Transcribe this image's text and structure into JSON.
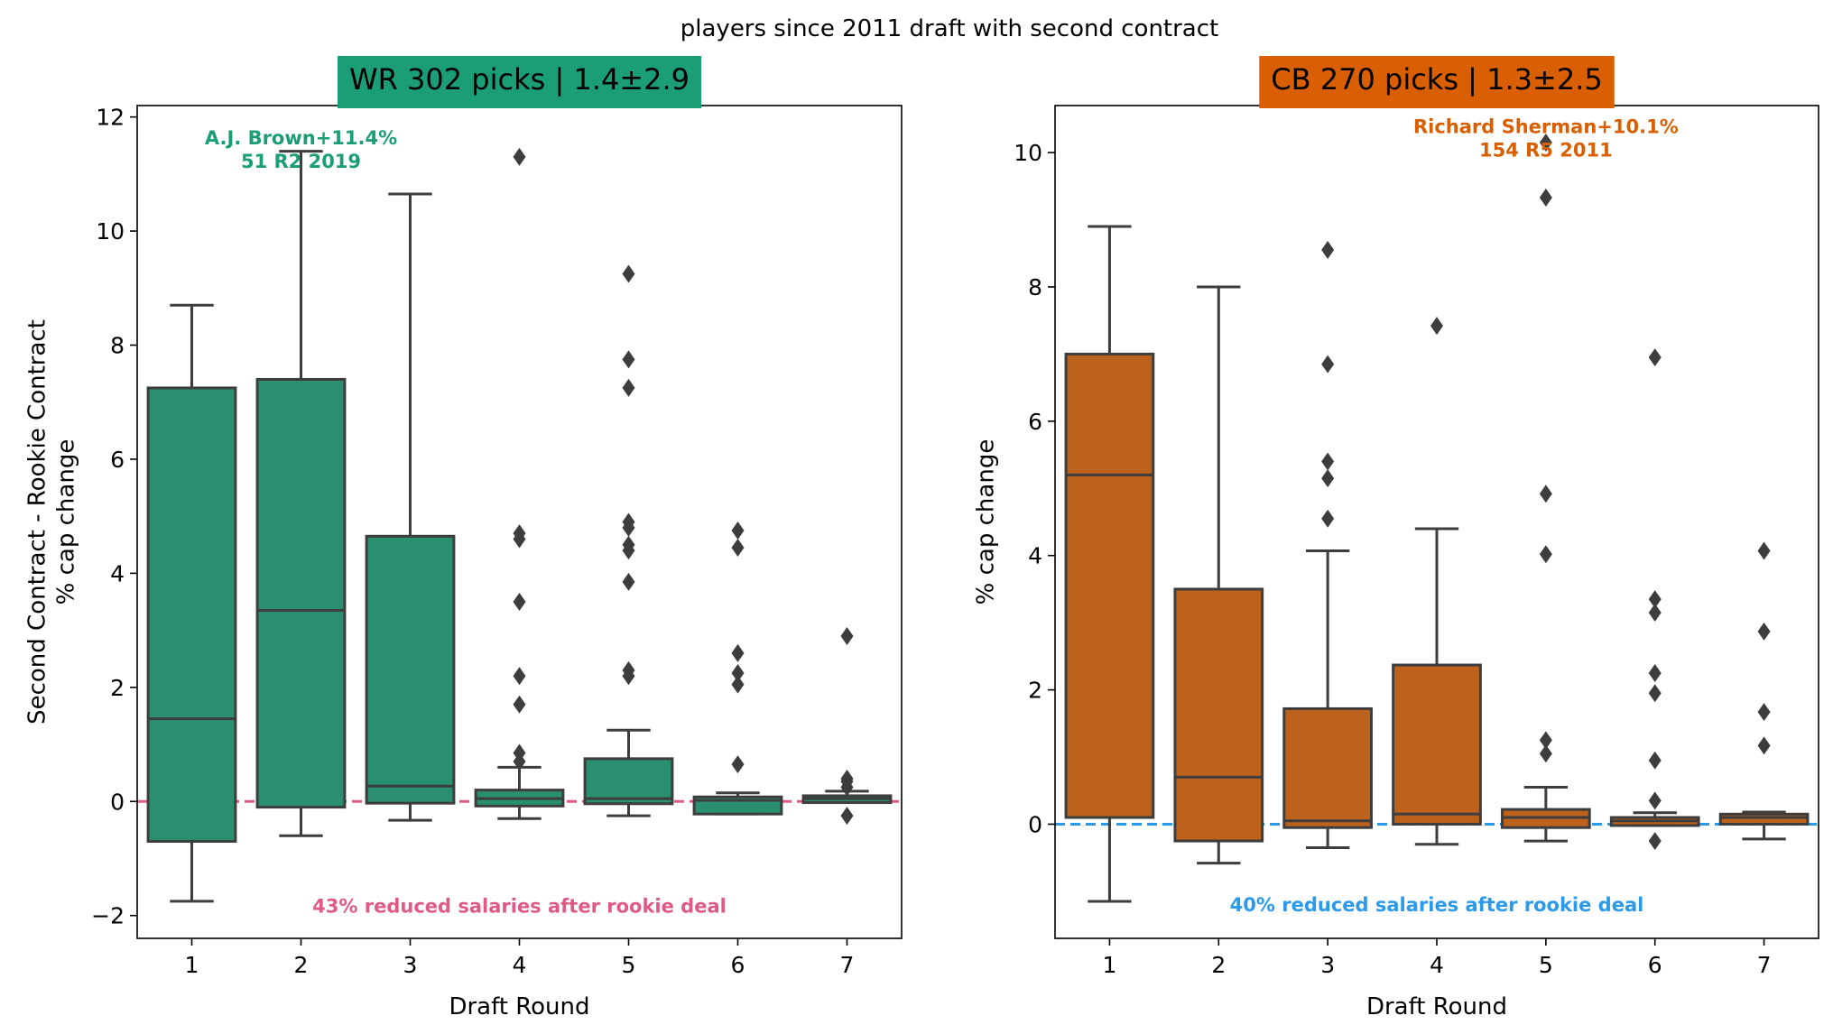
{
  "figure_title": "players since 2011 draft with second contract",
  "chart_data": [
    {
      "type": "box",
      "title": "WR 302 picks | 1.4±2.9",
      "title_bg": "#1b9e77",
      "box_color": "#2a8f71",
      "xlabel": "Draft Round",
      "ylabel_lines": [
        "Second Contract - Rookie Contract",
        "% cap change"
      ],
      "ylim": [
        -2.4,
        12.2
      ],
      "yticks": [
        -2,
        0,
        2,
        4,
        6,
        8,
        10,
        12
      ],
      "ytick_labels": [
        "−2",
        "0",
        "2",
        "4",
        "6",
        "8",
        "10",
        "12"
      ],
      "categories": [
        "1",
        "2",
        "3",
        "4",
        "5",
        "6",
        "7"
      ],
      "boxes": [
        {
          "q1": -0.7,
          "median": 1.45,
          "q3": 7.25,
          "whislo": -1.75,
          "whishi": 8.7,
          "fliers": []
        },
        {
          "q1": -0.1,
          "median": 3.35,
          "q3": 7.4,
          "whislo": -0.6,
          "whishi": 11.4,
          "fliers": []
        },
        {
          "q1": -0.03,
          "median": 0.27,
          "q3": 4.65,
          "whislo": -0.33,
          "whishi": 10.65,
          "fliers": []
        },
        {
          "q1": -0.08,
          "median": 0.05,
          "q3": 0.2,
          "whislo": -0.3,
          "whishi": 0.6,
          "fliers": [
            0.7,
            0.85,
            1.7,
            2.2,
            3.5,
            4.6,
            4.7,
            11.3
          ]
        },
        {
          "q1": -0.04,
          "median": 0.05,
          "q3": 0.75,
          "whislo": -0.25,
          "whishi": 1.25,
          "fliers": [
            2.2,
            2.3,
            3.85,
            4.4,
            4.5,
            4.8,
            4.9,
            7.25,
            7.75,
            9.25
          ]
        },
        {
          "q1": -0.22,
          "median": 0.02,
          "q3": 0.08,
          "whislo": -0.22,
          "whishi": 0.15,
          "fliers": [
            0.65,
            2.05,
            2.25,
            2.6,
            4.45,
            4.75
          ]
        },
        {
          "q1": -0.02,
          "median": 0.05,
          "q3": 0.1,
          "whislo": -0.02,
          "whishi": 0.18,
          "fliers": [
            -0.25,
            0.25,
            0.35,
            0.4,
            2.9
          ]
        }
      ],
      "ref_line": {
        "y": 0,
        "color": "#e05a86"
      },
      "top_annotation": {
        "lines": [
          "A.J. Brown+11.4%",
          "51 R2 2019"
        ],
        "x": 2,
        "y": 11.3,
        "color": "#1b9e77"
      },
      "bottom_annotation": {
        "text": "43% reduced salaries after rookie deal",
        "x": 4,
        "y": -1.95,
        "color": "#e05a86"
      }
    },
    {
      "type": "box",
      "title": "CB 270 picks | 1.3±2.5",
      "title_bg": "#d95f02",
      "box_color": "#bd621d",
      "xlabel": "Draft Round",
      "ylabel_lines": [
        "% cap change"
      ],
      "ylim": [
        -1.7,
        10.7
      ],
      "yticks": [
        0,
        2,
        4,
        6,
        8,
        10
      ],
      "ytick_labels": [
        "0",
        "2",
        "4",
        "6",
        "8",
        "10"
      ],
      "categories": [
        "1",
        "2",
        "3",
        "4",
        "5",
        "6",
        "7"
      ],
      "boxes": [
        {
          "q1": 0.1,
          "median": 5.2,
          "q3": 7.0,
          "whislo": -1.15,
          "whishi": 8.9,
          "fliers": []
        },
        {
          "q1": -0.25,
          "median": 0.7,
          "q3": 3.5,
          "whislo": -0.58,
          "whishi": 8.0,
          "fliers": []
        },
        {
          "q1": -0.05,
          "median": 0.05,
          "q3": 1.72,
          "whislo": -0.35,
          "whishi": 4.07,
          "fliers": [
            4.55,
            5.15,
            5.4,
            6.85,
            8.55
          ]
        },
        {
          "q1": 0.0,
          "median": 0.15,
          "q3": 2.37,
          "whislo": -0.3,
          "whishi": 4.4,
          "fliers": [
            7.42
          ]
        },
        {
          "q1": -0.05,
          "median": 0.1,
          "q3": 0.22,
          "whislo": -0.25,
          "whishi": 0.55,
          "fliers": [
            1.05,
            1.25,
            4.02,
            4.92,
            9.33,
            10.15
          ]
        },
        {
          "q1": -0.02,
          "median": 0.05,
          "q3": 0.1,
          "whislo": -0.02,
          "whishi": 0.17,
          "fliers": [
            -0.25,
            0.35,
            0.95,
            1.95,
            2.25,
            3.15,
            3.35,
            6.95
          ]
        },
        {
          "q1": 0.0,
          "median": 0.1,
          "q3": 0.15,
          "whislo": -0.22,
          "whishi": 0.18,
          "fliers": [
            1.17,
            1.67,
            2.87,
            4.07
          ]
        }
      ],
      "ref_line": {
        "y": 0,
        "color": "#2b9ae8"
      },
      "top_annotation": {
        "lines": [
          "Richard Sherman+10.1%",
          "154 R5 2011"
        ],
        "x": 5,
        "y": 10.1,
        "color": "#d95f02"
      },
      "bottom_annotation": {
        "text": "40% reduced salaries after rookie deal",
        "x": 4,
        "y": -1.3,
        "color": "#2b9ae8"
      }
    }
  ]
}
